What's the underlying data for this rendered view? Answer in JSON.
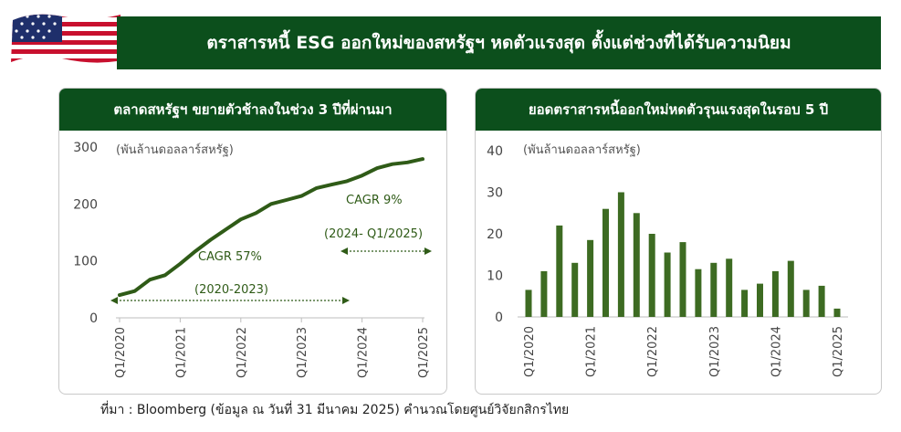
{
  "header": {
    "title": "ตราสารหนี้ ESG ออกใหม่ของสหรัฐฯ หดตัวแรงสุด ตั้งแต่ช่วงที่ได้รับความนิยม"
  },
  "colors": {
    "dark_green": "#0c4f1c",
    "line_green": "#2f5b17",
    "bar_green": "#3d6b22"
  },
  "footer": {
    "source": "ที่มา : Bloomberg (ข้อมูล ณ วันที่ 31 มีนาคม 2025) คำนวณโดยศูนย์วิจัยกสิกรไทย"
  },
  "chart_data": [
    {
      "type": "line",
      "title": "ตลาดสหรัฐฯ ขยายตัวช้าลงในช่วง 3 ปีที่ผ่านมา",
      "unit": "(พันล้านดอลลาร์สหรัฐ)",
      "x_tick_labels": [
        "Q1/2020",
        "Q1/2021",
        "Q1/2022",
        "Q1/2023",
        "Q1/2024",
        "Q1/2025"
      ],
      "yticks": [
        0,
        100,
        200,
        300
      ],
      "ylim": [
        0,
        300
      ],
      "x": [
        "Q1/2020",
        "Q2/2020",
        "Q3/2020",
        "Q4/2020",
        "Q1/2021",
        "Q2/2021",
        "Q3/2021",
        "Q4/2021",
        "Q1/2022",
        "Q2/2022",
        "Q3/2022",
        "Q4/2022",
        "Q1/2023",
        "Q2/2023",
        "Q3/2023",
        "Q4/2023",
        "Q1/2024",
        "Q2/2024",
        "Q3/2024",
        "Q4/2024",
        "Q1/2025"
      ],
      "values": [
        40,
        47,
        67,
        75,
        95,
        117,
        137,
        155,
        173,
        184,
        200,
        207,
        214,
        228,
        234,
        240,
        250,
        263,
        270,
        273,
        279
      ],
      "annotations": [
        {
          "label": "CAGR 57%",
          "period": "(2020-2023)"
        },
        {
          "label": "CAGR 9%",
          "period": "(2024- Q1/2025)"
        }
      ]
    },
    {
      "type": "bar",
      "title": "ยอดตราสารหนี้ออกใหม่หดตัวรุนแรงสุดในรอบ 5 ปี",
      "unit": "(พันล้านดอลลาร์สหรัฐ)",
      "x_tick_labels": [
        "Q1/2020",
        "Q1/2021",
        "Q1/2022",
        "Q1/2023",
        "Q1/2024",
        "Q1/2025"
      ],
      "yticks": [
        0,
        10,
        20,
        30,
        40
      ],
      "ylim": [
        0,
        40
      ],
      "categories": [
        "Q1/2020",
        "Q2/2020",
        "Q3/2020",
        "Q4/2020",
        "Q1/2021",
        "Q2/2021",
        "Q3/2021",
        "Q4/2021",
        "Q1/2022",
        "Q2/2022",
        "Q3/2022",
        "Q4/2022",
        "Q1/2023",
        "Q2/2023",
        "Q3/2023",
        "Q4/2023",
        "Q1/2024",
        "Q2/2024",
        "Q3/2024",
        "Q4/2024",
        "Q1/2025"
      ],
      "values": [
        6.5,
        11,
        22,
        13,
        18.5,
        26,
        30,
        25,
        20,
        15.5,
        18,
        11.5,
        13,
        14,
        6.5,
        8,
        11,
        13.5,
        6.5,
        7.5,
        2
      ]
    }
  ]
}
